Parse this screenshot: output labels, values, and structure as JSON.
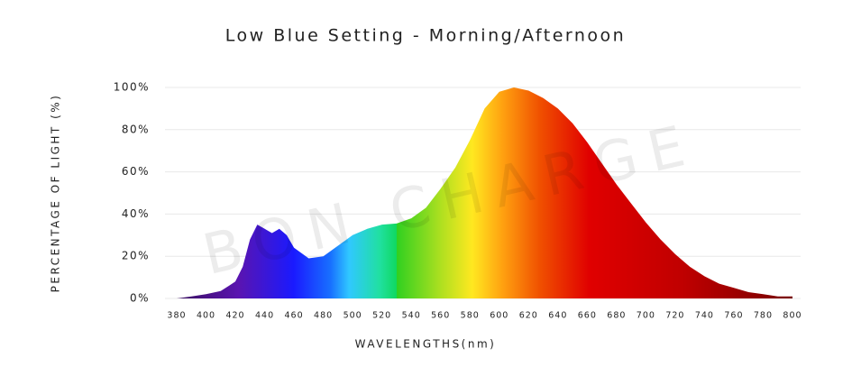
{
  "chart_data": {
    "type": "area",
    "title": "Low Blue Setting - Morning/Afternoon",
    "watermark": "BON CHARGE",
    "x_label": "WAVELENGTHS(nm)",
    "y_label": "PERCENTAGE OF LIGHT (%)",
    "x": [
      380,
      390,
      400,
      410,
      420,
      425,
      430,
      435,
      440,
      445,
      450,
      455,
      460,
      470,
      480,
      490,
      500,
      510,
      520,
      530,
      540,
      550,
      560,
      570,
      580,
      590,
      600,
      610,
      620,
      630,
      640,
      650,
      660,
      670,
      680,
      690,
      700,
      710,
      720,
      730,
      740,
      750,
      760,
      770,
      780,
      790,
      800
    ],
    "values": [
      0,
      1,
      2,
      3.5,
      8,
      15,
      28,
      35,
      33,
      31,
      33,
      30,
      24,
      19,
      20,
      25,
      30,
      33,
      35,
      35.5,
      38,
      43,
      52,
      62,
      75,
      90,
      98,
      100,
      98.5,
      95,
      90,
      83,
      74,
      64,
      54,
      45,
      36,
      28,
      21,
      15,
      10.5,
      7,
      5,
      3,
      2,
      1,
      1
    ],
    "xlim": [
      380,
      800
    ],
    "xticks": [
      380,
      400,
      420,
      440,
      460,
      480,
      500,
      520,
      540,
      560,
      580,
      600,
      620,
      640,
      660,
      680,
      700,
      720,
      740,
      760,
      780,
      800
    ],
    "ylim": [
      0,
      100
    ],
    "yticks": [
      {
        "value": 0,
        "label": "0%"
      },
      {
        "value": 20,
        "label": "20%"
      },
      {
        "value": 40,
        "label": "40%"
      },
      {
        "value": 60,
        "label": "60%"
      },
      {
        "value": 80,
        "label": "80%"
      },
      {
        "value": 100,
        "label": "100%"
      }
    ],
    "grid": true
  }
}
